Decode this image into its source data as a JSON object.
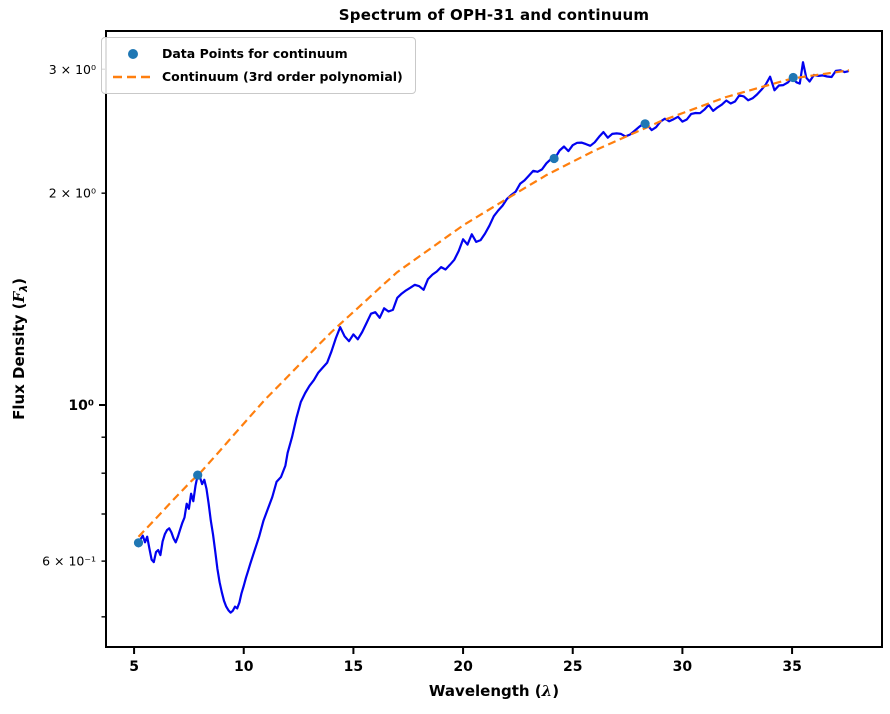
{
  "figure": {
    "title": "Spectrum of OPH-31 and continuum",
    "background": "#ffffff"
  },
  "legend": {
    "items": [
      {
        "label": "Data Points for continuum",
        "marker": "dot",
        "color": "#1f77b4"
      },
      {
        "label": "Continuum (3rd order polynomial)",
        "marker": "dashed-line",
        "color": "#ff7f0e"
      }
    ]
  },
  "axes": {
    "xlabel": {
      "prefix": "Wavelength (",
      "symbol": "λ",
      "suffix": ")"
    },
    "ylabel": {
      "prefix": "Flux Density (",
      "symbol": "F",
      "subscript": "λ",
      "suffix": ")"
    },
    "x_ticks": [
      {
        "value": 5,
        "label": "5"
      },
      {
        "value": 10,
        "label": "10"
      },
      {
        "value": 15,
        "label": "15"
      },
      {
        "value": 20,
        "label": "20"
      },
      {
        "value": 25,
        "label": "25"
      },
      {
        "value": 30,
        "label": "30"
      },
      {
        "value": 35,
        "label": "35"
      }
    ],
    "y_major_ticks": [
      {
        "value": 1.0,
        "label": "10⁰"
      }
    ],
    "y_minor_ticks_labeled": [
      {
        "value": 3.0,
        "label": "3 × 10⁰"
      },
      {
        "value": 2.0,
        "label": "2 × 10⁰"
      },
      {
        "value": 0.6,
        "label": "6 × 10⁻¹"
      }
    ],
    "y_minor_ticks_unlabeled": [
      0.5,
      0.7,
      0.8,
      0.9
    ]
  },
  "chart_data": {
    "type": "line",
    "title": "Spectrum of OPH-31 and continuum",
    "xlabel": "Wavelength (λ)",
    "ylabel": "Flux Density (F_λ)",
    "x_scale": "linear",
    "y_scale": "log",
    "xlim": [
      3.72,
      39.1
    ],
    "ylim": [
      0.453,
      3.4
    ],
    "grid": false,
    "legend_position": "upper left",
    "series": [
      {
        "name": "spectrum",
        "type": "line",
        "color": "#0202f0",
        "linewidth": 2.2,
        "x": [
          5.2,
          5.3,
          5.4,
          5.5,
          5.6,
          5.7,
          5.8,
          5.9,
          6.0,
          6.1,
          6.2,
          6.3,
          6.4,
          6.5,
          6.6,
          6.7,
          6.8,
          6.9,
          7.0,
          7.1,
          7.2,
          7.3,
          7.4,
          7.5,
          7.6,
          7.7,
          7.8,
          7.9,
          8.0,
          8.1,
          8.2,
          8.3,
          8.4,
          8.5,
          8.6,
          8.7,
          8.8,
          8.9,
          9.0,
          9.1,
          9.2,
          9.3,
          9.4,
          9.5,
          9.6,
          9.7,
          9.8,
          9.9,
          10.0,
          10.1,
          10.2,
          10.3,
          10.5,
          10.7,
          10.9,
          11.1,
          11.3,
          11.5,
          11.7,
          11.9,
          12.0,
          12.2,
          12.4,
          12.6,
          12.8,
          13.0,
          13.2,
          13.4,
          13.6,
          13.8,
          14.0,
          14.2,
          14.4,
          14.6,
          14.8,
          15.0,
          15.2,
          15.4,
          15.6,
          15.8,
          16.0,
          16.2,
          16.4,
          16.6,
          16.8,
          17.0,
          17.2,
          17.4,
          17.6,
          17.8,
          18.0,
          18.2,
          18.4,
          18.6,
          18.8,
          19.0,
          19.2,
          19.4,
          19.6,
          19.8,
          20.0,
          20.2,
          20.4,
          20.6,
          20.8,
          21.0,
          21.2,
          21.4,
          21.6,
          21.8,
          22.0,
          22.2,
          22.4,
          22.6,
          22.8,
          23.0,
          23.2,
          23.4,
          23.6,
          23.8,
          24.0,
          24.2,
          24.4,
          24.6,
          24.8,
          25.0,
          25.2,
          25.4,
          25.6,
          25.8,
          26.0,
          26.2,
          26.4,
          26.6,
          26.8,
          27.0,
          27.2,
          27.4,
          27.6,
          27.8,
          28.0,
          28.2,
          28.4,
          28.6,
          28.8,
          29.0,
          29.2,
          29.4,
          29.6,
          29.8,
          30.0,
          30.2,
          30.4,
          30.6,
          30.8,
          31.0,
          31.2,
          31.4,
          31.6,
          31.8,
          32.0,
          32.2,
          32.4,
          32.6,
          32.8,
          33.0,
          33.2,
          33.4,
          33.6,
          33.8,
          34.0,
          34.2,
          34.4,
          34.6,
          34.8,
          35.0,
          35.2,
          35.35,
          35.5,
          35.65,
          35.8,
          36.0,
          36.2,
          36.4,
          36.6,
          36.8,
          37.0,
          37.2,
          37.4,
          37.55
        ],
        "y": [
          0.63,
          0.645,
          0.652,
          0.638,
          0.65,
          0.625,
          0.603,
          0.598,
          0.618,
          0.622,
          0.612,
          0.64,
          0.655,
          0.664,
          0.668,
          0.659,
          0.646,
          0.638,
          0.65,
          0.665,
          0.68,
          0.692,
          0.724,
          0.712,
          0.748,
          0.73,
          0.768,
          0.795,
          0.79,
          0.772,
          0.783,
          0.76,
          0.725,
          0.685,
          0.655,
          0.62,
          0.585,
          0.56,
          0.542,
          0.527,
          0.517,
          0.511,
          0.507,
          0.51,
          0.517,
          0.514,
          0.524,
          0.54,
          0.553,
          0.568,
          0.581,
          0.595,
          0.622,
          0.65,
          0.685,
          0.712,
          0.74,
          0.778,
          0.79,
          0.82,
          0.855,
          0.9,
          0.958,
          1.01,
          1.04,
          1.065,
          1.085,
          1.112,
          1.13,
          1.148,
          1.192,
          1.245,
          1.29,
          1.252,
          1.232,
          1.26,
          1.24,
          1.27,
          1.308,
          1.348,
          1.355,
          1.33,
          1.372,
          1.358,
          1.365,
          1.42,
          1.44,
          1.455,
          1.468,
          1.482,
          1.475,
          1.458,
          1.51,
          1.532,
          1.548,
          1.57,
          1.558,
          1.582,
          1.608,
          1.655,
          1.72,
          1.69,
          1.748,
          1.705,
          1.715,
          1.752,
          1.798,
          1.855,
          1.89,
          1.92,
          1.962,
          1.988,
          2.01,
          2.062,
          2.085,
          2.118,
          2.152,
          2.145,
          2.162,
          2.205,
          2.235,
          2.245,
          2.3,
          2.33,
          2.295,
          2.34,
          2.358,
          2.36,
          2.348,
          2.335,
          2.362,
          2.405,
          2.442,
          2.398,
          2.428,
          2.432,
          2.428,
          2.408,
          2.422,
          2.45,
          2.48,
          2.508,
          2.5,
          2.458,
          2.482,
          2.528,
          2.552,
          2.53,
          2.548,
          2.568,
          2.528,
          2.545,
          2.592,
          2.6,
          2.598,
          2.628,
          2.67,
          2.618,
          2.648,
          2.672,
          2.708,
          2.682,
          2.7,
          2.755,
          2.745,
          2.71,
          2.728,
          2.762,
          2.805,
          2.855,
          2.928,
          2.8,
          2.845,
          2.848,
          2.872,
          2.915,
          2.875,
          2.862,
          3.07,
          2.918,
          2.882,
          2.945,
          2.935,
          2.94,
          2.93,
          2.925,
          2.985,
          2.99,
          2.972,
          2.98
        ]
      },
      {
        "name": "continuum_fit",
        "type": "line",
        "style": "dashed",
        "color": "#ff7f0e",
        "linewidth": 2.2,
        "x": [
          5.2,
          6.0,
          6.8,
          7.6,
          8.0,
          8.8,
          9.6,
          10.4,
          11.0,
          11.8,
          12.6,
          13.4,
          14.0,
          14.8,
          15.6,
          16.4,
          17.0,
          17.8,
          18.6,
          19.4,
          20.0,
          20.8,
          21.6,
          22.4,
          23.0,
          23.8,
          24.6,
          25.4,
          26.0,
          26.8,
          27.6,
          28.4,
          29.0,
          29.8,
          30.6,
          31.4,
          32.0,
          32.8,
          33.6,
          34.4,
          35.0,
          35.8,
          36.6,
          37.4,
          37.6
        ],
        "y": [
          0.65,
          0.69,
          0.734,
          0.779,
          0.8,
          0.853,
          0.911,
          0.972,
          1.02,
          1.081,
          1.147,
          1.216,
          1.27,
          1.338,
          1.41,
          1.486,
          1.545,
          1.609,
          1.676,
          1.746,
          1.8,
          1.864,
          1.93,
          1.998,
          2.05,
          2.122,
          2.185,
          2.25,
          2.3,
          2.359,
          2.42,
          2.482,
          2.53,
          2.585,
          2.64,
          2.697,
          2.74,
          2.784,
          2.83,
          2.876,
          2.91,
          2.935,
          2.959,
          2.984,
          2.99
        ]
      },
      {
        "name": "continuum_points",
        "type": "scatter",
        "color": "#1f77b4",
        "markersize": 4.6,
        "x": [
          5.2,
          7.9,
          24.15,
          28.3,
          35.05
        ],
        "y": [
          0.637,
          0.795,
          2.24,
          2.51,
          2.92
        ]
      }
    ]
  }
}
